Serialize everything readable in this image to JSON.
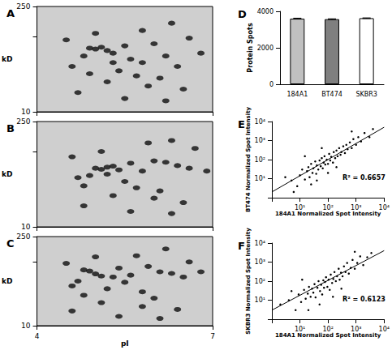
{
  "chart_data": [
    {
      "panel": "A",
      "type": "gel",
      "color": "#1a1a1a",
      "log": "y",
      "tick_labels": "y",
      "ylabel": "kD",
      "xlim": [
        4,
        7
      ],
      "xticks": [
        4,
        7
      ],
      "ylim": [
        10,
        250
      ],
      "yticks": [
        10,
        250
      ],
      "x": [
        4.9,
        5.0,
        5.1,
        5.2,
        4.8,
        5.3,
        5.5,
        5.6,
        5.8,
        6.0,
        6.2,
        6.4,
        5.4,
        5.7,
        6.1,
        4.6,
        4.5,
        5.0,
        5.8,
        6.3,
        6.6,
        5.2,
        5.9,
        6.5,
        4.7,
        5.5,
        6.2,
        6.8,
        5.3,
        4.9
      ],
      "y": [
        70,
        68,
        72,
        65,
        55,
        60,
        75,
        50,
        45,
        80,
        55,
        40,
        35,
        30,
        28,
        40,
        90,
        110,
        120,
        150,
        95,
        25,
        22,
        20,
        18,
        15,
        14,
        60,
        45,
        32
      ]
    },
    {
      "panel": "B",
      "type": "gel",
      "color": "#1a1a1a",
      "log": "y",
      "tick_labels": "y",
      "ylabel": "kD",
      "xlim": [
        4,
        7
      ],
      "xticks": [
        4,
        7
      ],
      "ylim": [
        10,
        250
      ],
      "yticks": [
        10,
        250
      ],
      "x": [
        5.0,
        5.1,
        5.2,
        5.3,
        5.4,
        4.9,
        5.6,
        5.8,
        6.0,
        6.2,
        6.4,
        6.6,
        5.5,
        5.7,
        6.1,
        4.7,
        4.6,
        5.1,
        5.9,
        6.3,
        6.7,
        5.3,
        6.0,
        6.5,
        4.8,
        5.6,
        6.3,
        6.9,
        5.2,
        4.8
      ],
      "y": [
        60,
        58,
        62,
        64,
        57,
        48,
        70,
        55,
        75,
        72,
        65,
        60,
        40,
        33,
        30,
        45,
        85,
        100,
        130,
        140,
        110,
        26,
        24,
        21,
        19,
        16,
        15,
        55,
        50,
        35
      ]
    },
    {
      "panel": "C",
      "type": "gel",
      "color": "#1a1a1a",
      "log": "y",
      "tick_labels": true,
      "ylabel": "kD",
      "xlabel": "pI",
      "xlim": [
        4,
        7
      ],
      "xticks": [
        4,
        7
      ],
      "ylim": [
        10,
        250
      ],
      "yticks": [
        10,
        250
      ],
      "x": [
        4.8,
        4.9,
        5.0,
        5.1,
        5.3,
        4.7,
        5.4,
        5.6,
        5.9,
        6.1,
        6.3,
        6.5,
        5.2,
        5.8,
        6.0,
        4.6,
        4.5,
        5.0,
        5.7,
        6.2,
        6.6,
        5.1,
        5.8,
        6.4,
        4.6,
        5.4,
        6.1,
        6.8,
        5.5,
        4.8
      ],
      "y": [
        75,
        72,
        65,
        60,
        58,
        50,
        80,
        62,
        85,
        70,
        66,
        58,
        38,
        34,
        27,
        42,
        95,
        120,
        125,
        160,
        100,
        23,
        20,
        18,
        17,
        14,
        13,
        70,
        48,
        30
      ]
    },
    {
      "panel": "D",
      "type": "bar",
      "ylabel": "Protein Spots",
      "categories": [
        "184A1",
        "BT474",
        "SKBR3"
      ],
      "values": [
        3600,
        3570,
        3625
      ],
      "errors": [
        25,
        20,
        15
      ],
      "colors": [
        "#c0c0c0",
        "#7f7f7f",
        "#ffffff"
      ],
      "ylim": [
        0,
        4000
      ],
      "yticks": [
        0,
        2000,
        4000
      ]
    },
    {
      "panel": "E",
      "type": "scatter",
      "color": "#000000",
      "log": true,
      "xlabel": "184A1 Normalized Spot Intensity",
      "ylabel": "BT474 Normalized Spot Intensity",
      "annotation": "R² = 0.6657",
      "xlim": [
        1,
        10000
      ],
      "ylim": [
        1,
        10000
      ],
      "xticks": [
        {
          "value": 10,
          "label": "10¹"
        },
        {
          "value": 100,
          "label": "10²"
        },
        {
          "value": 1000,
          "label": "10³"
        },
        {
          "value": 10000,
          "label": "10⁴"
        }
      ],
      "yticks": [
        {
          "value": 10,
          "label": "10¹"
        },
        {
          "value": 100,
          "label": "10²"
        },
        {
          "value": 1000,
          "label": "10³"
        },
        {
          "value": 10000,
          "label": "10⁴"
        }
      ],
      "x": [
        5,
        8,
        10,
        12,
        15,
        18,
        20,
        22,
        25,
        28,
        30,
        35,
        38,
        40,
        45,
        50,
        55,
        60,
        65,
        70,
        75,
        80,
        90,
        100,
        110,
        120,
        130,
        150,
        160,
        180,
        200,
        220,
        250,
        280,
        300,
        350,
        400,
        450,
        500,
        600,
        700,
        800,
        1000,
        1200,
        1500,
        2000,
        3000,
        4000,
        3,
        6,
        40,
        15,
        200,
        700,
        100,
        25,
        60
      ],
      "y": [
        8,
        4,
        15,
        30,
        9,
        25,
        40,
        12,
        60,
        20,
        35,
        80,
        18,
        50,
        30,
        90,
        45,
        120,
        35,
        70,
        150,
        55,
        100,
        60,
        200,
        90,
        140,
        70,
        250,
        120,
        300,
        150,
        400,
        180,
        250,
        500,
        220,
        600,
        350,
        800,
        400,
        1200,
        600,
        1500,
        900,
        2500,
        1500,
        4000,
        12,
        2,
        8,
        150,
        40,
        3000,
        20,
        5,
        400
      ],
      "fit": {
        "x": [
          1,
          10000
        ],
        "y": [
          2,
          5000
        ]
      }
    },
    {
      "panel": "F",
      "type": "scatter",
      "color": "#000000",
      "log": true,
      "xlabel": "184A1 Normalized Spot Intensity",
      "ylabel": "SKBR3 Normalized Spot Intensity",
      "annotation": "R² = 0.6123",
      "xlim": [
        1,
        10000
      ],
      "ylim": [
        1,
        10000
      ],
      "xticks": [
        {
          "value": 10,
          "label": "10¹"
        },
        {
          "value": 100,
          "label": "10²"
        },
        {
          "value": 1000,
          "label": "10³"
        },
        {
          "value": 10000,
          "label": "10⁴"
        }
      ],
      "yticks": [
        {
          "value": 10,
          "label": "10¹"
        },
        {
          "value": 100,
          "label": "10²"
        },
        {
          "value": 1000,
          "label": "10³"
        },
        {
          "value": 10000,
          "label": "10⁴"
        }
      ],
      "x": [
        4,
        7,
        9,
        11,
        14,
        16,
        19,
        21,
        24,
        27,
        30,
        33,
        36,
        42,
        46,
        52,
        57,
        62,
        68,
        72,
        78,
        85,
        95,
        105,
        115,
        125,
        140,
        155,
        170,
        190,
        210,
        240,
        260,
        290,
        330,
        370,
        420,
        480,
        550,
        650,
        750,
        900,
        1100,
        1400,
        1800,
        2500,
        3500,
        2,
        5,
        50,
        12,
        300,
        900,
        150,
        20
      ],
      "y": [
        10,
        3,
        20,
        8,
        35,
        12,
        22,
        50,
        15,
        40,
        25,
        70,
        14,
        45,
        100,
        30,
        65,
        20,
        110,
        45,
        90,
        160,
        50,
        120,
        35,
        220,
        80,
        130,
        300,
        100,
        180,
        450,
        120,
        280,
        180,
        600,
        300,
        900,
        250,
        500,
        1300,
        450,
        900,
        2000,
        700,
        1800,
        3000,
        6,
        30,
        6,
        120,
        40,
        3500,
        15,
        3
      ],
      "fit": {
        "x": [
          1,
          10000
        ],
        "y": [
          3,
          4000
        ]
      }
    }
  ]
}
